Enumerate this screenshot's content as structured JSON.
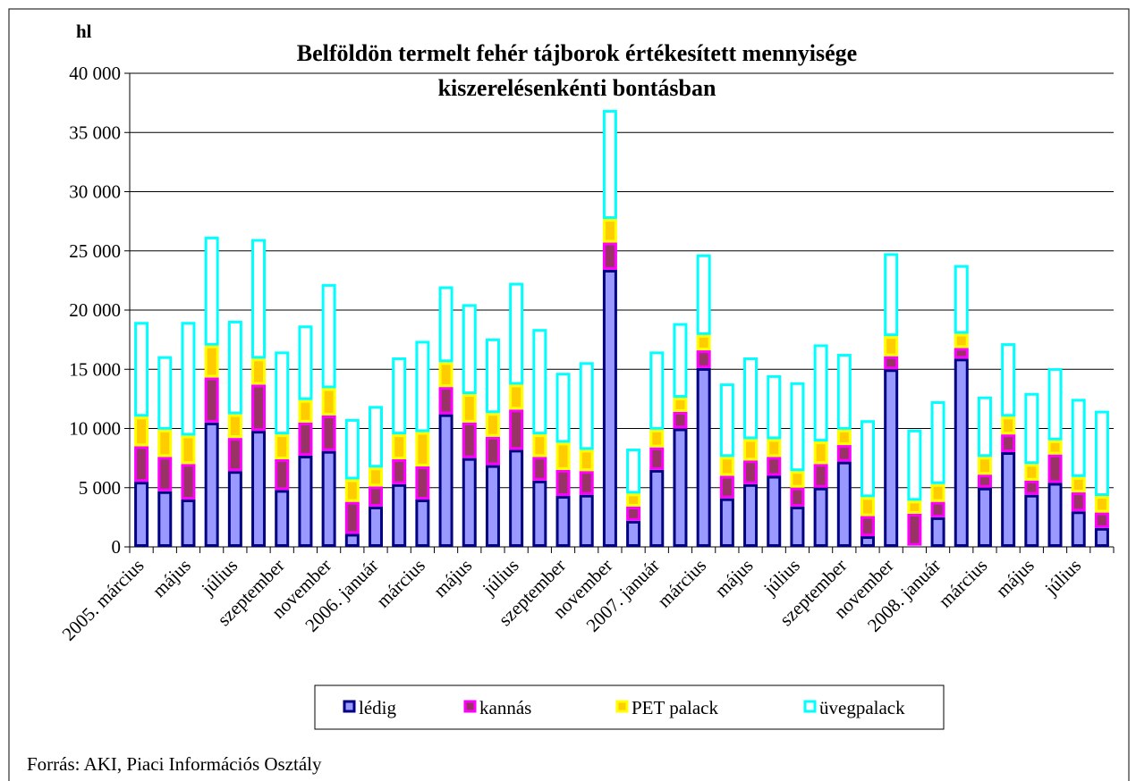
{
  "chart_data": {
    "type": "stacked_bar",
    "title": "Belföldön termelt fehér tájborok értékesített mennyisége kiszerelésenkénti bontásban",
    "y_unit": "hl",
    "source": "Forrás: AKI, Piaci Információs Osztály",
    "categories": [
      "2005. március",
      null,
      "május",
      null,
      "július",
      null,
      "szeptember",
      null,
      "november",
      null,
      "2006. január",
      null,
      "március",
      null,
      "május",
      null,
      "július",
      null,
      "szeptember",
      null,
      "november",
      null,
      "2007. január",
      null,
      "március",
      null,
      "május",
      null,
      "július",
      null,
      "szeptember",
      null,
      "november",
      null,
      "2008. január",
      null,
      "március",
      null,
      "május",
      null,
      "július",
      null
    ],
    "series": [
      {
        "name": "lédig",
        "color": "#000080",
        "fill": "#9999ff",
        "values": [
          5500,
          4700,
          4000,
          10500,
          6400,
          9800,
          4800,
          7700,
          8100,
          1100,
          3400,
          5300,
          4000,
          11200,
          7500,
          6900,
          8200,
          5600,
          4300,
          4400,
          23400,
          2200,
          6500,
          10000,
          15100,
          4100,
          5300,
          6000,
          3400,
          5000,
          7200,
          900,
          15000,
          100,
          2500,
          15900,
          5000,
          8000,
          4400,
          5400,
          3000,
          1600
        ]
      },
      {
        "name": "kannás",
        "color": "#ff00ff",
        "fill": "#993366",
        "values": [
          3000,
          2900,
          3000,
          3800,
          2800,
          3900,
          2600,
          2800,
          3000,
          2700,
          1700,
          2100,
          2800,
          2300,
          3000,
          2400,
          3400,
          2000,
          2200,
          2000,
          2300,
          1200,
          1900,
          1400,
          1500,
          1900,
          2000,
          1600,
          1600,
          2000,
          1400,
          1700,
          1100,
          2700,
          1300,
          900,
          1100,
          1500,
          1200,
          2400,
          1600,
          1300
        ]
      },
      {
        "name": "PET palack",
        "color": "#ffff00",
        "fill": "#ffcc00",
        "values": [
          2500,
          2300,
          2400,
          2700,
          2000,
          2200,
          2100,
          1900,
          2300,
          1900,
          1600,
          2100,
          2900,
          2100,
          2400,
          2000,
          2100,
          1900,
          2300,
          1800,
          2000,
          1100,
          1500,
          1200,
          1300,
          1600,
          1800,
          1500,
          1400,
          1900,
          1300,
          1600,
          1700,
          1100,
          1500,
          1200,
          1500,
          1500,
          1400,
          1200,
          1300,
          1400
        ]
      },
      {
        "name": "üvegpalack",
        "color": "#00ffff",
        "fill": "#ffffff",
        "values": [
          8000,
          6200,
          9600,
          9200,
          7900,
          10100,
          7000,
          6300,
          8800,
          5100,
          5200,
          6500,
          7700,
          6400,
          7600,
          6300,
          8600,
          8900,
          5900,
          7400,
          9200,
          3800,
          6600,
          6300,
          6800,
          6200,
          6900,
          5400,
          7500,
          8200,
          6400,
          6500,
          7000,
          6000,
          7000,
          5800,
          5100,
          6200,
          6000,
          6100,
          6600,
          7200
        ]
      }
    ],
    "ylim": [
      0,
      40000
    ],
    "yticks": [
      0,
      {
        "value": 5000,
        "label": "5 000"
      },
      {
        "value": 10000,
        "label": "10 000"
      },
      {
        "value": 15000,
        "label": "15 000"
      },
      {
        "value": 20000,
        "label": "20 000"
      },
      {
        "value": 25000,
        "label": "25 000"
      },
      {
        "value": 30000,
        "label": "30 000"
      },
      {
        "value": 35000,
        "label": "35 000"
      },
      {
        "value": 40000,
        "label": "40 000"
      }
    ],
    "grid": true,
    "legend": "bottom"
  }
}
